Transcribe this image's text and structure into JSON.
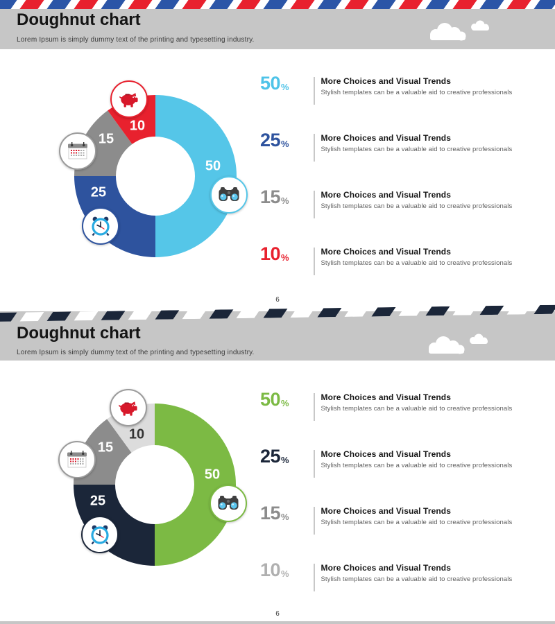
{
  "chart_data": [
    {
      "type": "pie",
      "subtype": "doughnut",
      "title": "Doughnut chart",
      "categories": [
        "binoculars",
        "alarm-clock",
        "calendar",
        "piggy-bank"
      ],
      "values": [
        50,
        25,
        15,
        10
      ],
      "unit": "%",
      "colors": [
        "#55C6E8",
        "#2E539E",
        "#8C8C8C",
        "#E8212E"
      ],
      "label_colors": [
        "#FFFFFF",
        "#FFFFFF",
        "#FFFFFF",
        "#FFFFFF"
      ],
      "icon_border_colors": [
        "#55C6E8",
        "#2E539E",
        "#9B9B9B",
        "#E8212E"
      ],
      "legend_position": "right"
    },
    {
      "type": "pie",
      "subtype": "doughnut",
      "title": "Doughnut chart",
      "categories": [
        "binoculars",
        "alarm-clock",
        "calendar",
        "piggy-bank"
      ],
      "values": [
        50,
        25,
        15,
        10
      ],
      "unit": "%",
      "colors": [
        "#7CBA44",
        "#1B2639",
        "#8C8C8C",
        "#DCDCDC"
      ],
      "label_colors": [
        "#FFFFFF",
        "#FFFFFF",
        "#FFFFFF",
        "#333333"
      ],
      "icon_border_colors": [
        "#7CBA44",
        "#1B2639",
        "#9B9B9B",
        "#9B9B9B"
      ],
      "legend_position": "right"
    }
  ],
  "slides": [
    {
      "title": "Doughnut chart",
      "subtitle": "Lorem Ipsum is simply dummy text of the printing and typesetting industry.",
      "page": "6",
      "stripe": {
        "colors": [
          "#2B55A7",
          "#E8212E"
        ]
      },
      "legend": [
        {
          "pct": "50",
          "suffix": "%",
          "color": "#4EC3E8",
          "heading": "More Choices and Visual Trends",
          "sub": "Stylish templates can be a valuable aid to creative professionals"
        },
        {
          "pct": "25",
          "suffix": "%",
          "color": "#2E539E",
          "heading": "More Choices and Visual Trends",
          "sub": "Stylish templates can be a valuable aid to creative professionals"
        },
        {
          "pct": "15",
          "suffix": "%",
          "color": "#8C8C8C",
          "heading": "More Choices and Visual Trends",
          "sub": "Stylish templates can be a valuable aid to creative professionals"
        },
        {
          "pct": "10",
          "suffix": "%",
          "color": "#E8212E",
          "heading": "More Choices and Visual Trends",
          "sub": "Stylish templates can be a valuable aid to creative professionals"
        }
      ]
    },
    {
      "title": "Doughnut chart",
      "subtitle": "Lorem Ipsum is simply dummy text of the printing and typesetting industry.",
      "page": "6",
      "stripe": {
        "colors": [
          "#1B2639",
          "#FFFFFF"
        ]
      },
      "legend": [
        {
          "pct": "50",
          "suffix": "%",
          "color": "#7CBA44",
          "heading": "More Choices and Visual Trends",
          "sub": "Stylish templates can be a valuable aid to creative professionals"
        },
        {
          "pct": "25",
          "suffix": "%",
          "color": "#1B2639",
          "heading": "More Choices and Visual Trends",
          "sub": "Stylish templates can be a valuable aid to creative professionals"
        },
        {
          "pct": "15",
          "suffix": "%",
          "color": "#8C8C8C",
          "heading": "More Choices and Visual Trends",
          "sub": "Stylish templates can be a valuable aid to creative professionals"
        },
        {
          "pct": "10",
          "suffix": "%",
          "color": "#B0B0B0",
          "heading": "More Choices and Visual Trends",
          "sub": "Stylish templates can be a valuable aid to creative professionals"
        }
      ]
    }
  ]
}
